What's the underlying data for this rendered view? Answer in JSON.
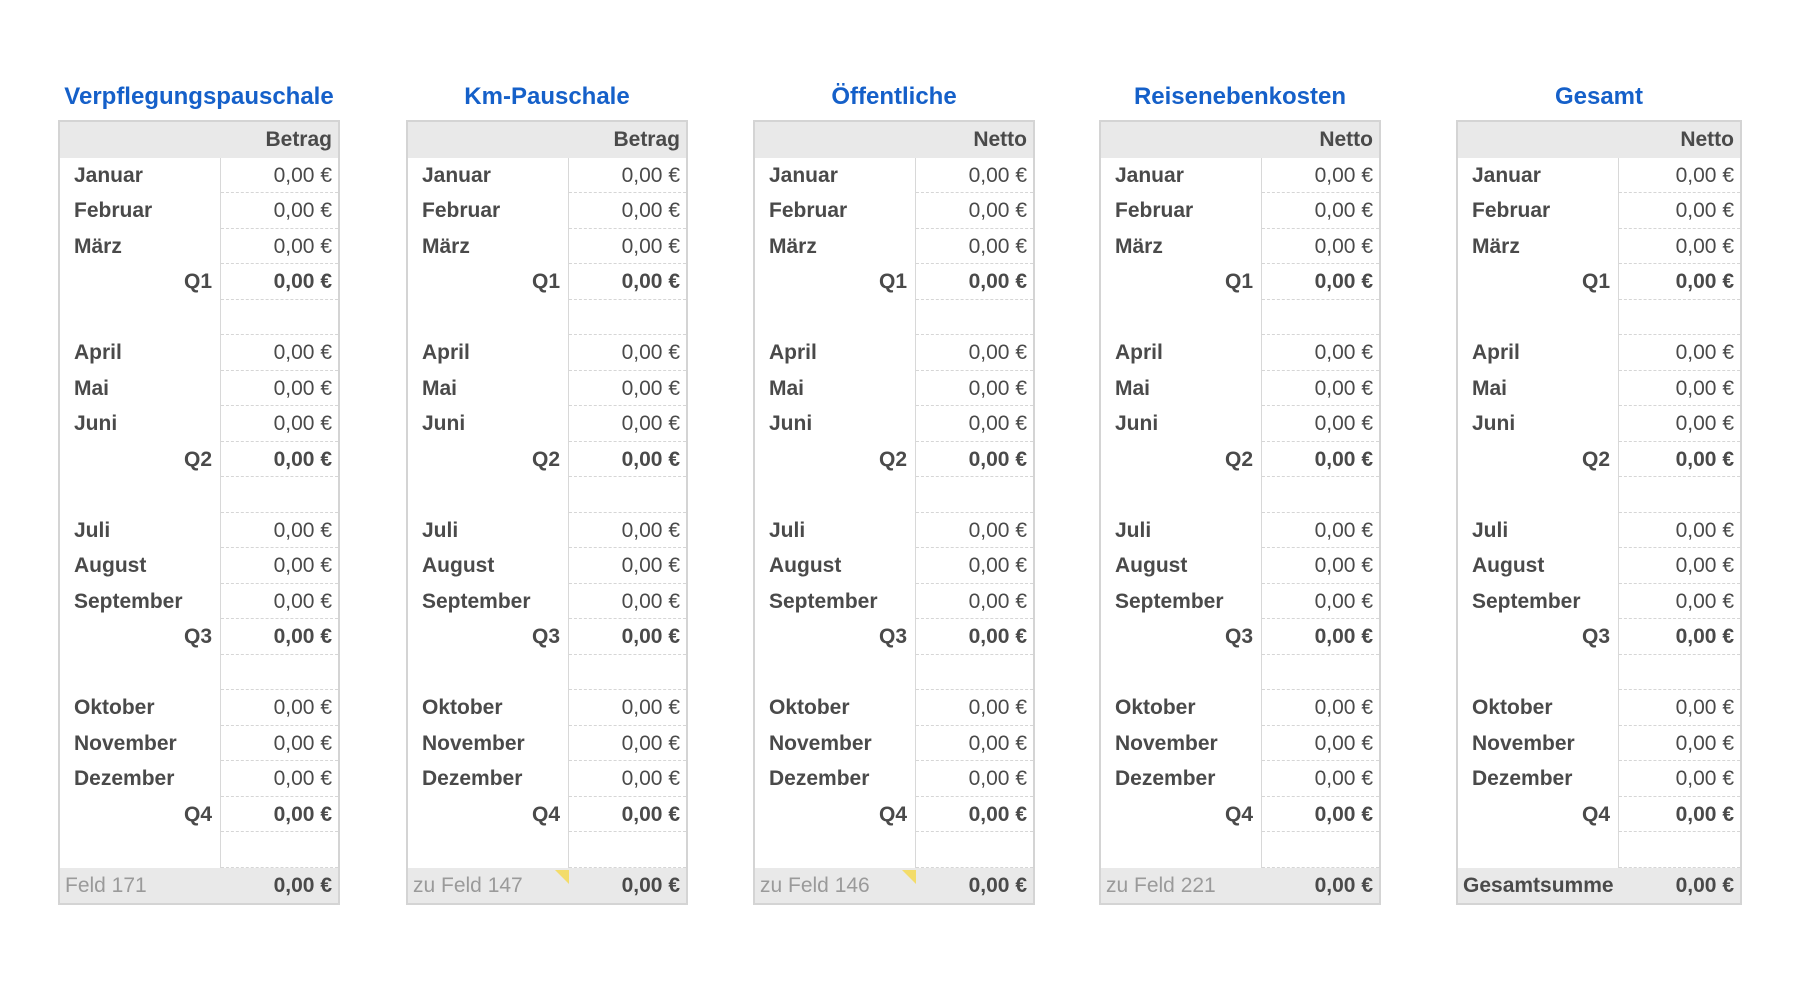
{
  "tables": [
    {
      "title": "Verpflegungspauschale",
      "header": "Betrag",
      "footer": {
        "label": "Feld 171",
        "value": "0,00 €"
      }
    },
    {
      "title": "Km-Pauschale",
      "header": "Betrag",
      "footer": {
        "label": "zu Feld 147",
        "value": "0,00 €"
      }
    },
    {
      "title": "Öffentliche",
      "header": "Netto",
      "footer": {
        "label": "zu Feld 146",
        "value": "0,00 €"
      }
    },
    {
      "title": "Reisenebenkosten",
      "header": "Netto",
      "footer": {
        "label": "zu Feld 221",
        "value": "0,00 €"
      }
    },
    {
      "title": "Gesamt",
      "header": "Netto",
      "footer": {
        "label": "Gesamtsumme",
        "value": "0,00 €"
      }
    }
  ]
}
